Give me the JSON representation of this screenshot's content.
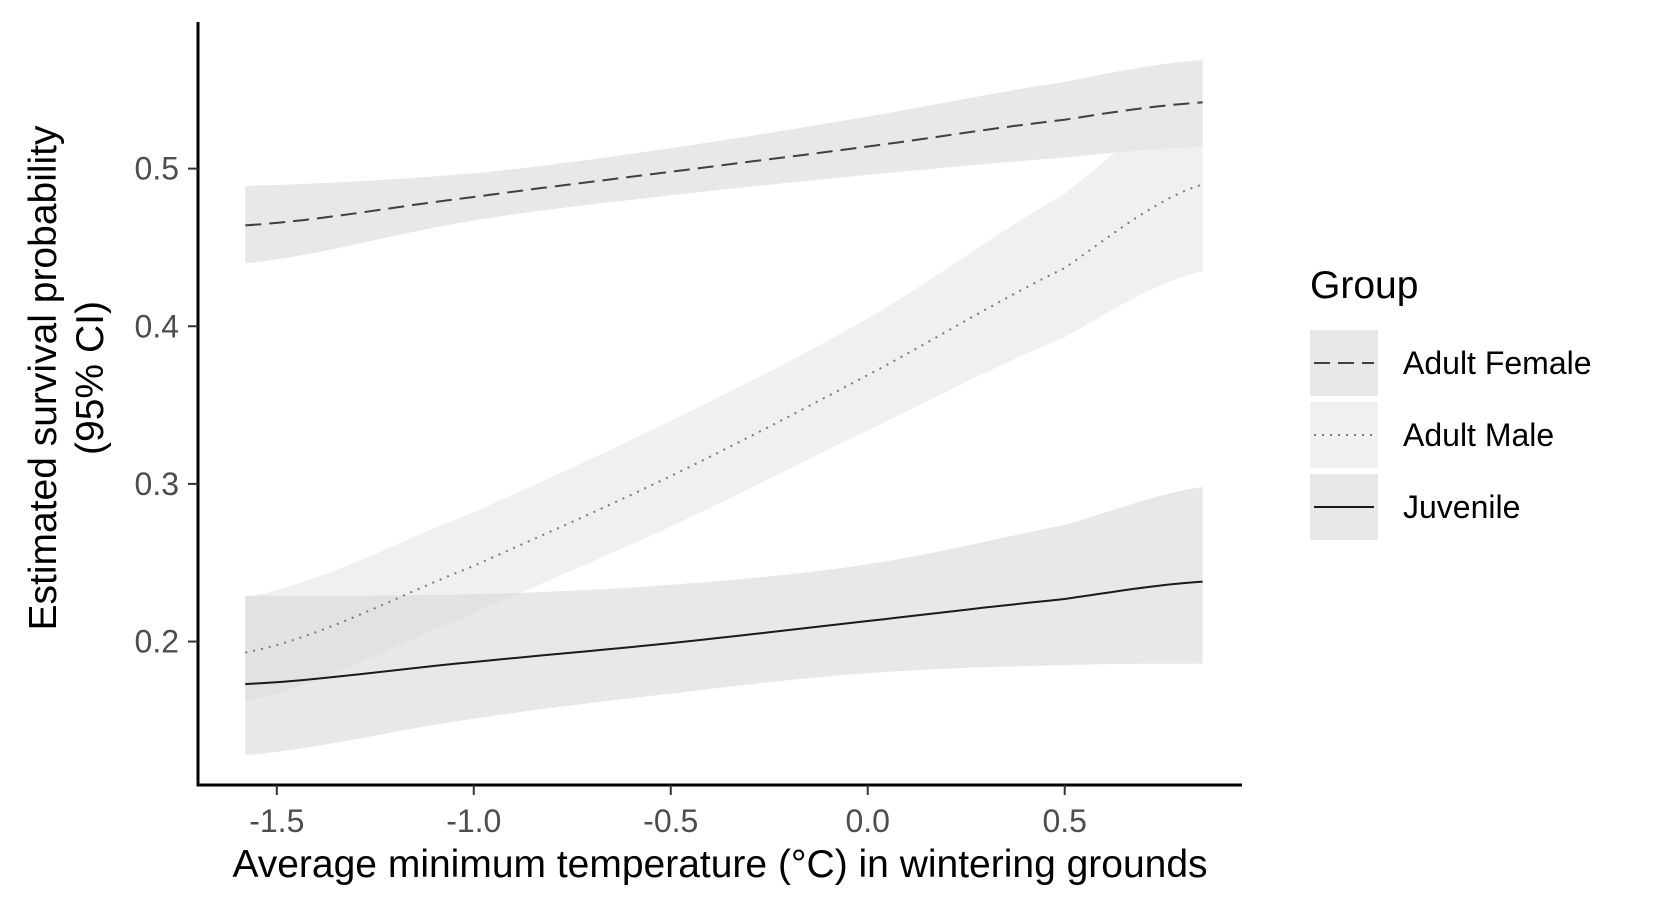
{
  "chart_data": {
    "type": "line",
    "xlabel": "Average minimum temperature (°C) in wintering grounds",
    "ylabel_line1": "Estimated survival probability",
    "ylabel_line2": "(95% CI)",
    "xlim": [
      -1.7,
      0.95
    ],
    "ylim": [
      0.109,
      0.593
    ],
    "x_ticks": [
      -1.5,
      -1.0,
      -0.5,
      0.0,
      0.5
    ],
    "x_tick_labels": [
      "-1.5",
      "-1.0",
      "-0.5",
      "0.0",
      "0.5"
    ],
    "y_ticks": [
      0.2,
      0.3,
      0.4,
      0.5
    ],
    "y_tick_labels": [
      "0.2",
      "0.3",
      "0.4",
      "0.5"
    ],
    "grid": false,
    "legend": {
      "title": "Group",
      "placement": "right",
      "entries": [
        "Adult Female",
        "Adult Male",
        "Juvenile"
      ]
    },
    "series": [
      {
        "name": "Adult Female",
        "linestyle": "dashed",
        "color": "#404040",
        "band_color": "#d9d9d9",
        "x": [
          -1.58,
          -1.0,
          -0.5,
          0.0,
          0.5,
          0.85
        ],
        "y": [
          0.464,
          0.482,
          0.498,
          0.514,
          0.531,
          0.542
        ],
        "lower": [
          0.44,
          0.467,
          0.483,
          0.496,
          0.507,
          0.514
        ],
        "upper": [
          0.489,
          0.497,
          0.513,
          0.533,
          0.555,
          0.569
        ]
      },
      {
        "name": "Adult Male",
        "linestyle": "dotted",
        "color": "#7a7a7a",
        "band_color": "#e6e6e6",
        "x": [
          -1.58,
          -1.0,
          -0.5,
          0.0,
          0.5,
          0.85
        ],
        "y": [
          0.193,
          0.248,
          0.305,
          0.369,
          0.437,
          0.49
        ],
        "lower": [
          0.162,
          0.218,
          0.273,
          0.334,
          0.393,
          0.435
        ],
        "upper": [
          0.228,
          0.282,
          0.34,
          0.405,
          0.484,
          0.545
        ]
      },
      {
        "name": "Juvenile",
        "linestyle": "solid",
        "color": "#1a1a1a",
        "band_color": "#d9d9d9",
        "x": [
          -1.58,
          -1.0,
          -0.5,
          0.0,
          0.5,
          0.85
        ],
        "y": [
          0.173,
          0.187,
          0.199,
          0.213,
          0.227,
          0.238
        ],
        "lower": [
          0.128,
          0.151,
          0.167,
          0.18,
          0.185,
          0.186
        ],
        "upper": [
          0.229,
          0.23,
          0.236,
          0.249,
          0.274,
          0.298
        ]
      }
    ]
  }
}
